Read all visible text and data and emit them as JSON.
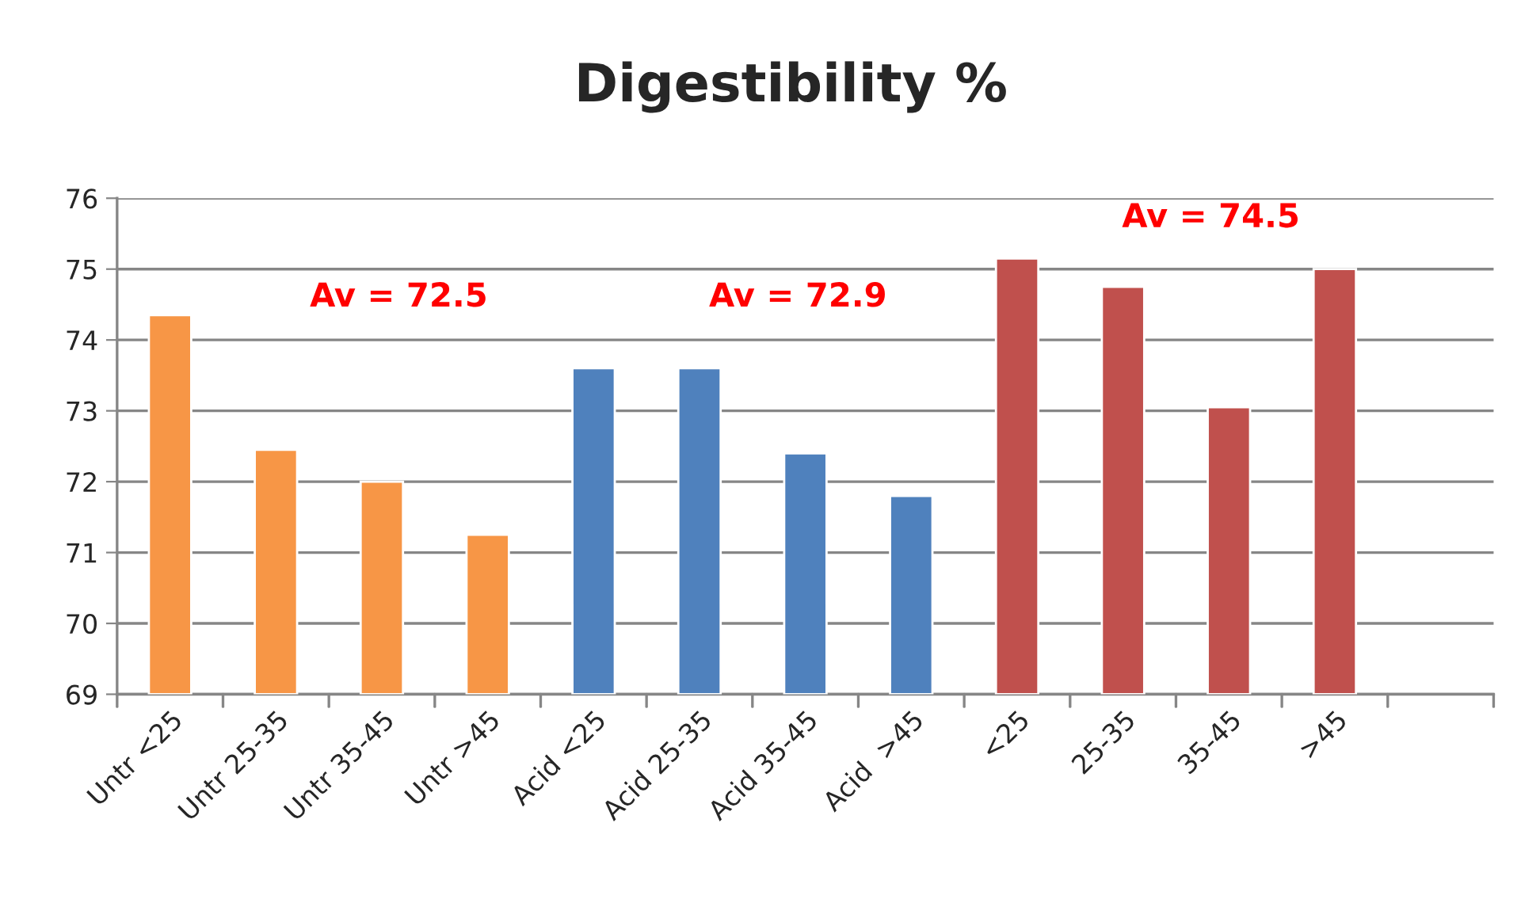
{
  "chart_data": {
    "type": "bar",
    "title": "Digestibility %",
    "categories": [
      "Untr <25",
      "Untr 25-35",
      "Untr 35-45",
      "Untr >45",
      "Acid <25",
      "Acid 25-35",
      "Acid 35-45",
      "Acid  >45",
      "<25",
      "25-35",
      "35-45",
      ">45",
      null
    ],
    "values": [
      74.35,
      72.45,
      72.0,
      71.25,
      73.6,
      73.6,
      72.4,
      71.8,
      75.15,
      74.75,
      73.05,
      75.0,
      null
    ],
    "colors": [
      "#f79646",
      "#f79646",
      "#f79646",
      "#f79646",
      "#4f81bd",
      "#4f81bd",
      "#4f81bd",
      "#4f81bd",
      "#c0504d",
      "#c0504d",
      "#c0504d",
      "#c0504d",
      null
    ],
    "ylim": [
      69,
      76
    ],
    "yticks": [
      69,
      70,
      71,
      72,
      73,
      74,
      75,
      76
    ],
    "grid": "y",
    "legend": false,
    "annotations": [
      "Av = 72.5",
      "Av = 72.9",
      "Av = 74.5"
    ]
  }
}
